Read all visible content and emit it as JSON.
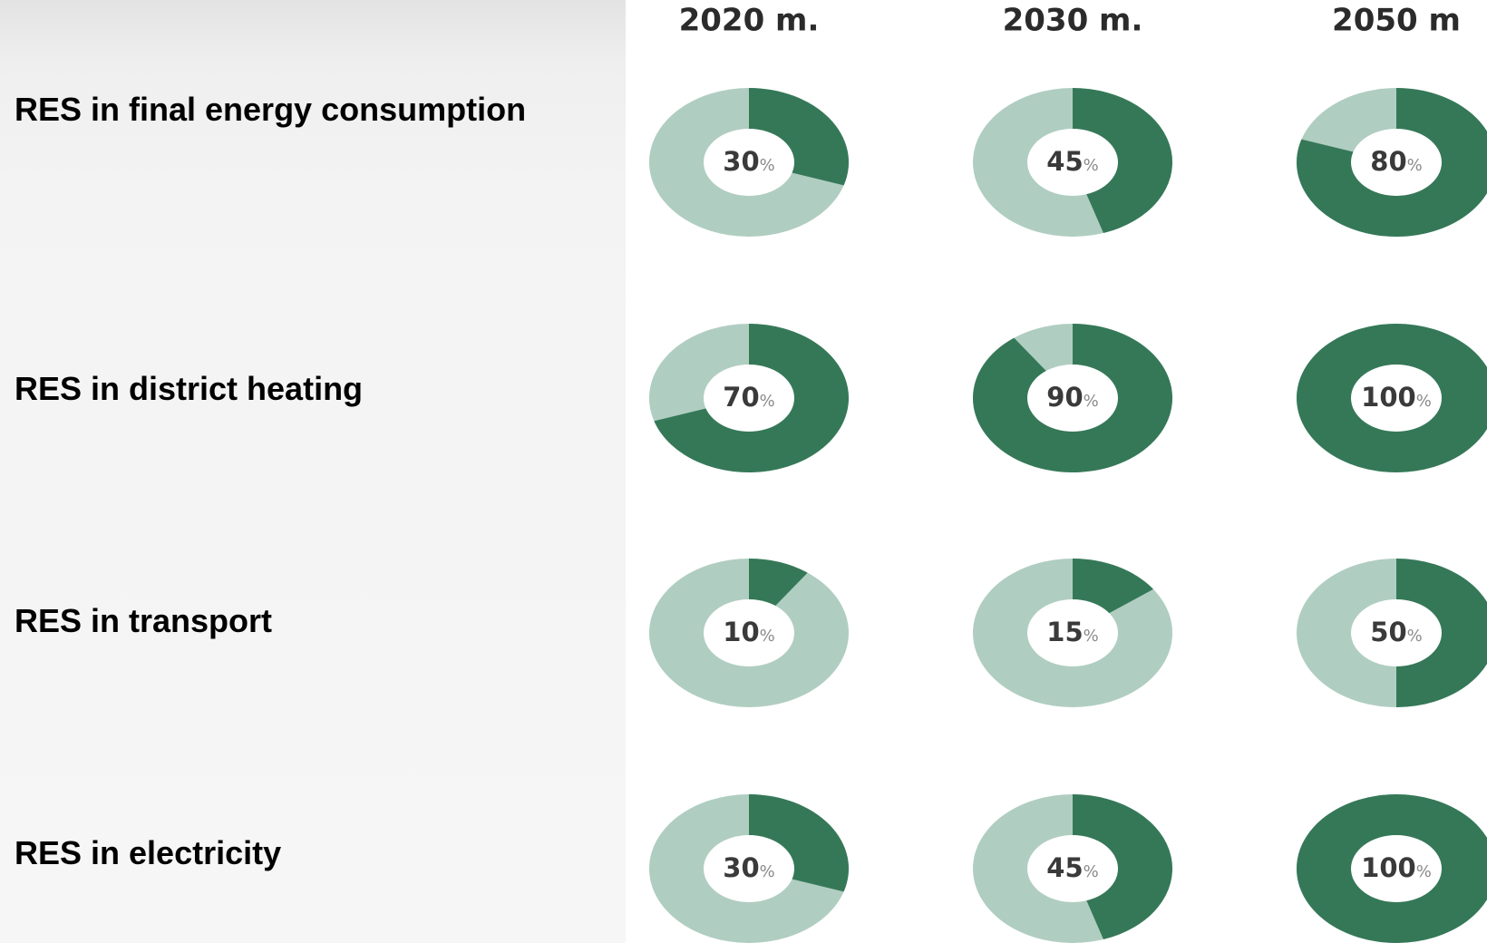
{
  "chart_data": {
    "type": "pie",
    "title": "",
    "columns": [
      "2020 m.",
      "2030 m.",
      "2050 m"
    ],
    "rows": [
      {
        "label": "RES in final energy consumption",
        "values": [
          30,
          45,
          80
        ]
      },
      {
        "label": "RES in district heating",
        "values": [
          70,
          90,
          100
        ]
      },
      {
        "label": "RES in transport",
        "values": [
          10,
          15,
          50
        ]
      },
      {
        "label": "RES in electricity",
        "values": [
          30,
          45,
          100
        ]
      }
    ],
    "value_suffix": "%",
    "colors": {
      "filled": "#357858",
      "remaining": "#b0cdc1",
      "center_text": "#3a3a3a",
      "suffix_text": "#8a8a8a"
    }
  }
}
